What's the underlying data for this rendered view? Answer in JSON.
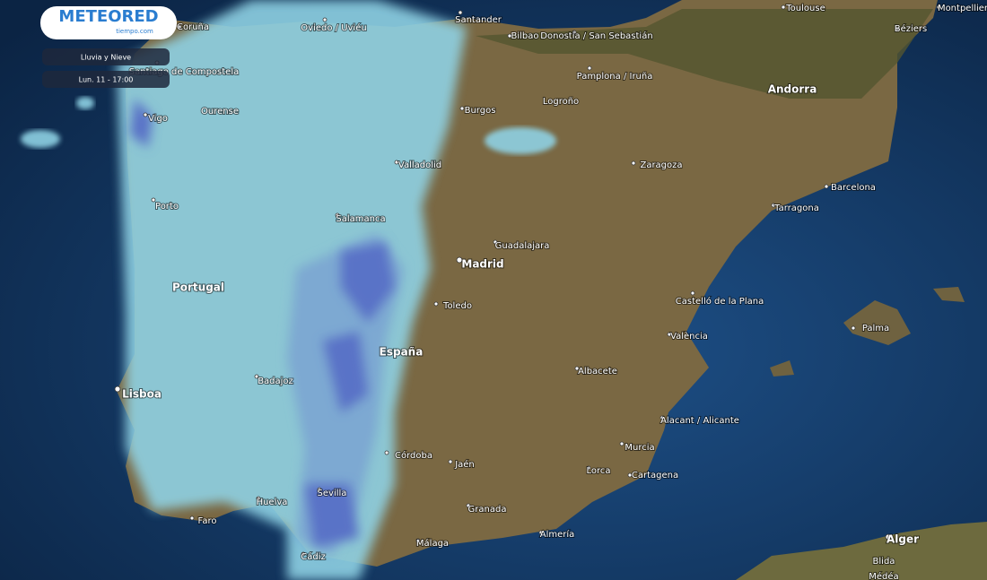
{
  "logo": {
    "name": "METEORED",
    "site": "tiempo.com"
  },
  "layer": "Lluvia y Nieve",
  "time": "Lun. 11 - 17:00",
  "places": [
    "Coruña",
    "Oviedo / Uviéu",
    "Santander",
    "Bilbao",
    "Donostia / San Sebastián",
    "Toulouse",
    "Montpellier",
    "Béziers",
    "Santiago de Compostela",
    "Vigo",
    "Ourense",
    "Burgos",
    "Pamplona / Iruña",
    "Logroño",
    "Andorra",
    "Valladolid",
    "Zaragoza",
    "Barcelona",
    "Tarragona",
    "Porto",
    "Salamanca",
    "Guadalajara",
    "Madrid",
    "Portugal",
    "Toledo",
    "Castelló de la Plana",
    "Palma",
    "València",
    "España",
    "Lisboa",
    "Badajoz",
    "Albacete",
    "Alacant / Alicante",
    "Córdoba",
    "Jaén",
    "Murcia",
    "Lorca",
    "Cartagena",
    "Huelva",
    "Sevilla",
    "Granada",
    "Faro",
    "Málaga",
    "Almería",
    "Cádiz",
    "Alger",
    "Blida",
    "Médéa"
  ]
}
